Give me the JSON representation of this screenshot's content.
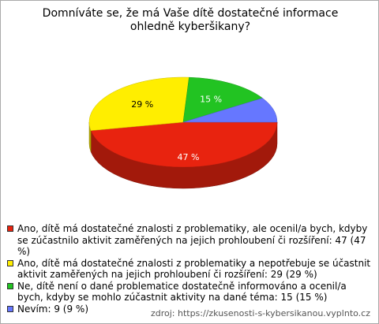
{
  "chart_data": {
    "type": "pie",
    "title": "Domníváte se, že má Vaše dítě dostatečné informace ohledně kyberšikany?",
    "categories": [
      "Ano, dítě má dostatečné znalosti z problematiky, ale ocenil/a bych, kdyby se zúčastnilo aktivit zaměřených na jejich prohloubení či rozšíření: 47 (47 %)",
      "Ano, dítě má dostatečné znalosti z problematiky a nepotřebuje se účastnit aktivit zaměřených na jejich prohloubení či rozšíření: 29 (29 %)",
      "Ne, dítě není o dané problematice dostatečně informováno a ocenil/a bych, kdyby se mohlo zúčastnit aktivity na dané téma: 15 (15 %)",
      "Nevím: 9 (9 %)"
    ],
    "values": [
      47,
      29,
      15,
      9
    ],
    "value_labels": [
      "47 %",
      "29 %",
      "15 %",
      null
    ],
    "colors": [
      "#e8230f",
      "#ffee00",
      "#22c322",
      "#6677ff"
    ],
    "source": "zdroj: https://zkusenosti-s-kybersikanou.vyplnto.cz"
  }
}
